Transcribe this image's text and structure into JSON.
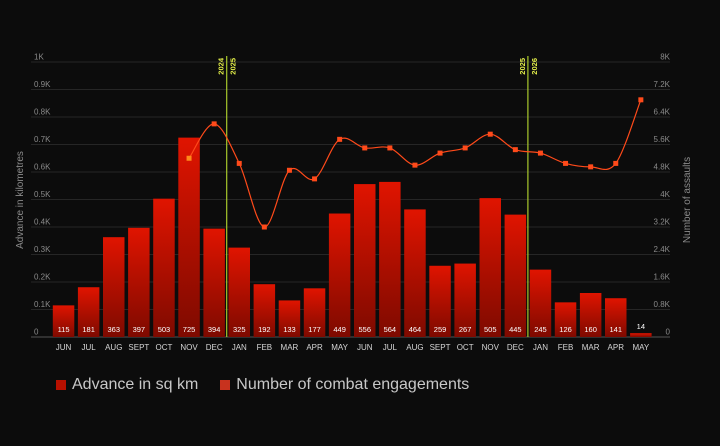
{
  "chart_data": {
    "type": "bar",
    "categories": [
      "JUN",
      "JUL",
      "AUG",
      "SEPT",
      "OCT",
      "NOV",
      "DEC",
      "JAN",
      "FEB",
      "MAR",
      "APR",
      "MAY",
      "JUN",
      "JUL",
      "AUG",
      "SEPT",
      "OCT",
      "NOV",
      "DEC",
      "JAN",
      "FEB",
      "MAR",
      "APR",
      "MAY"
    ],
    "series": [
      {
        "name": "Advance in sq km",
        "type": "bar",
        "axis": "left",
        "values": [
          115,
          181,
          363,
          397,
          503,
          725,
          394,
          325,
          192,
          133,
          177,
          449,
          556,
          564,
          464,
          259,
          267,
          505,
          445,
          245,
          126,
          160,
          141,
          14
        ]
      },
      {
        "name": "Number of combat engagements",
        "type": "line",
        "axis": "right",
        "values": [
          null,
          null,
          null,
          null,
          null,
          5200,
          6200,
          5050,
          3200,
          4850,
          4600,
          5750,
          5500,
          5500,
          5000,
          5350,
          5500,
          5900,
          5450,
          5350,
          5050,
          4950,
          5050,
          6900
        ]
      }
    ],
    "y_left": {
      "label": "Advance in kilometres",
      "range": [
        0,
        1000
      ],
      "ticks": [
        "0",
        "0.1K",
        "0.2K",
        "0.3K",
        "0.4K",
        "0.5K",
        "0.6K",
        "0.7K",
        "0.8K",
        "0.9K",
        "1K"
      ]
    },
    "y_right": {
      "label": "Number of assaults",
      "range": [
        0,
        8000
      ],
      "ticks": [
        "0",
        "0.8K",
        "1.6K",
        "2.4K",
        "3.2K",
        "4K",
        "4.8K",
        "5.6K",
        "6.4K",
        "7.2K",
        "8K"
      ]
    },
    "year_markers": [
      {
        "after_index": 6,
        "left": "2024",
        "right": "2025"
      },
      {
        "after_index": 18,
        "left": "2025",
        "right": "2026"
      }
    ],
    "grid": true,
    "legend": "bottom-left",
    "colors": {
      "bar_top": "#e01400",
      "bar_bottom": "#7e0a00",
      "line": "#ff4a1a",
      "marker": "#e2f04a"
    }
  },
  "legend": {
    "bars_label": "Advance in sq km",
    "line_label": "Number of combat engagements"
  }
}
